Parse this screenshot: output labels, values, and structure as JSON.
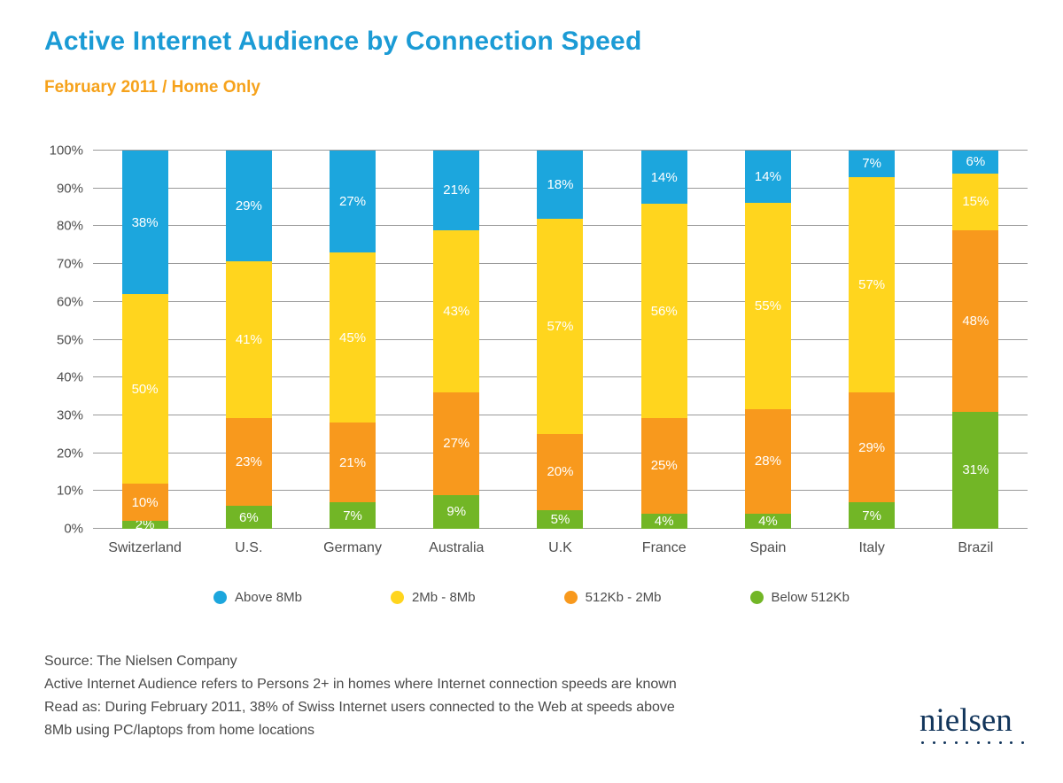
{
  "header": {
    "title": "Active Internet Audience by Connection Speed",
    "subtitle": "February 2011 / Home Only"
  },
  "chart_data": {
    "type": "bar",
    "stacked": true,
    "title": "Active Internet Audience by Connection Speed",
    "subtitle": "February 2011 / Home Only",
    "categories": [
      "Switzerland",
      "U.S.",
      "Germany",
      "Australia",
      "U.K",
      "France",
      "Spain",
      "Italy",
      "Brazil"
    ],
    "series": [
      {
        "name": "Below 512Kb",
        "color": "#72b626",
        "values": [
          2,
          6,
          7,
          9,
          5,
          4,
          4,
          7,
          31
        ]
      },
      {
        "name": "512Kb - 2Mb",
        "color": "#f8991d",
        "values": [
          10,
          23,
          21,
          27,
          20,
          25,
          28,
          29,
          48
        ]
      },
      {
        "name": "2Mb - 8Mb",
        "color": "#ffd51e",
        "values": [
          50,
          41,
          45,
          43,
          57,
          56,
          55,
          57,
          15
        ]
      },
      {
        "name": "Above 8Mb",
        "color": "#1ca6dd",
        "values": [
          38,
          29,
          27,
          21,
          18,
          14,
          14,
          7,
          6
        ]
      }
    ],
    "y_ticks": [
      "0%",
      "10%",
      "20%",
      "30%",
      "40%",
      "50%",
      "60%",
      "70%",
      "80%",
      "90%",
      "100%"
    ],
    "ylim": [
      0,
      100
    ],
    "grid": true,
    "legend_position": "bottom"
  },
  "legend": {
    "items": [
      {
        "label": "Above 8Mb",
        "color": "#1ca6dd"
      },
      {
        "label": "2Mb - 8Mb",
        "color": "#ffd51e"
      },
      {
        "label": "512Kb - 2Mb",
        "color": "#f8991d"
      },
      {
        "label": "Below 512Kb",
        "color": "#72b626"
      }
    ]
  },
  "footer": {
    "line1": "Source: The Nielsen Company",
    "line2": "Active Internet Audience refers to Persons 2+ in homes where Internet connection speeds are known",
    "line3": "Read as: During February 2011, 38% of Swiss Internet users connected to the Web at speeds above",
    "line4": "8Mb using PC/laptops from home locations"
  },
  "logo": {
    "text": "nielsen"
  }
}
